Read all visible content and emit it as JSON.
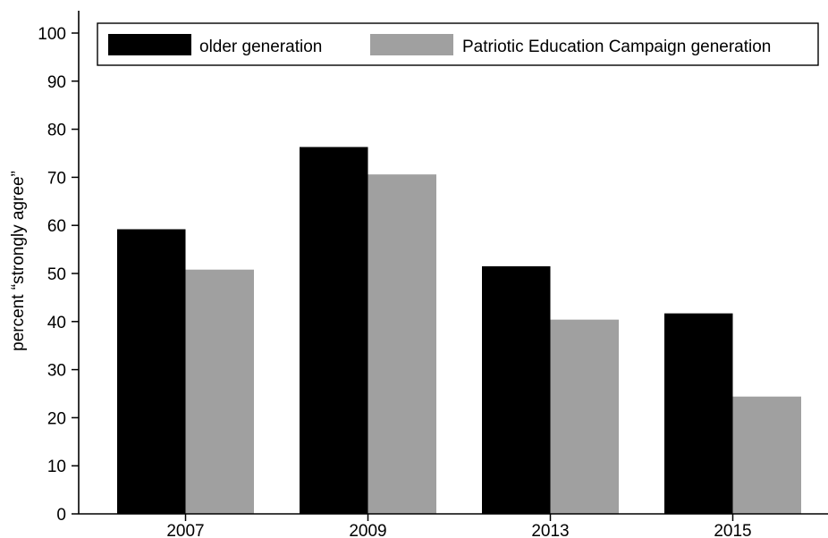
{
  "chart_data": {
    "type": "bar",
    "categories": [
      "2007",
      "2009",
      "2013",
      "2015"
    ],
    "series": [
      {
        "name": "older generation",
        "values": [
          59.2,
          76.3,
          51.5,
          41.7
        ],
        "color": "#000000"
      },
      {
        "name": "Patriotic Education Campaign generation",
        "values": [
          50.8,
          70.6,
          40.4,
          24.4
        ],
        "color": "#a0a0a0"
      }
    ],
    "title": "",
    "xlabel": "",
    "ylabel": "percent “strongly agree”",
    "ylim": [
      0,
      100
    ],
    "yticks": [
      0,
      10,
      20,
      30,
      40,
      50,
      60,
      70,
      80,
      90,
      100
    ],
    "grid": false,
    "legend_position": "top"
  }
}
